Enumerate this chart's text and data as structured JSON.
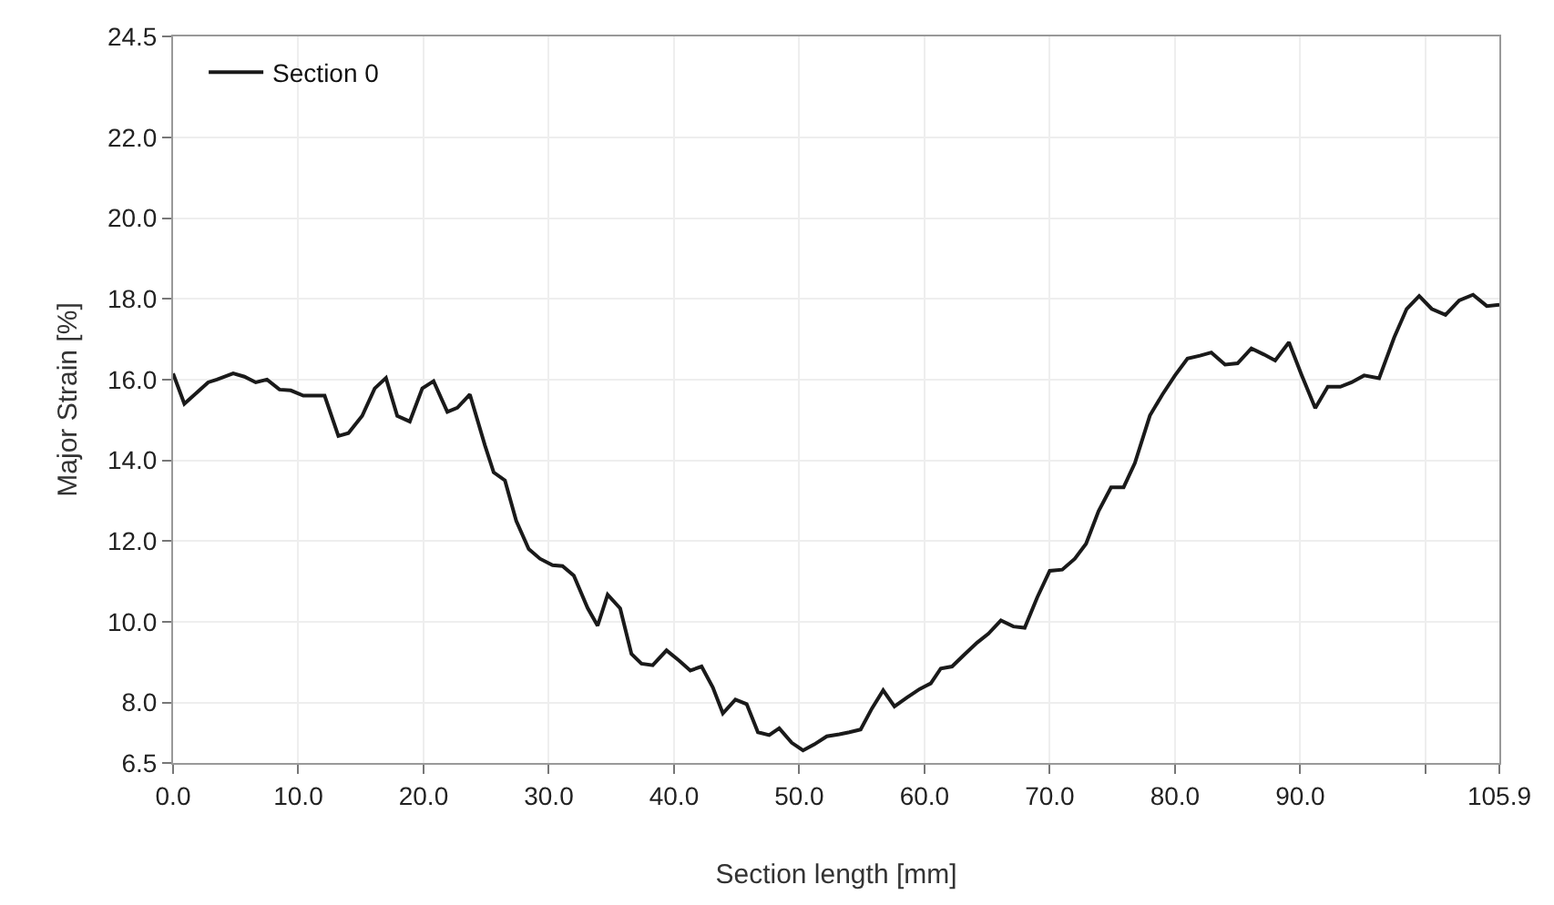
{
  "chart_data": {
    "type": "line",
    "xlabel": "Section length [mm]",
    "ylabel": "Major Strain [%]",
    "xlim": [
      0,
      105.9
    ],
    "ylim": [
      6.5,
      24.5
    ],
    "xticks": [
      {
        "value": 0,
        "label": "0.0"
      },
      {
        "value": 10,
        "label": "10.0"
      },
      {
        "value": 20,
        "label": "20.0"
      },
      {
        "value": 30,
        "label": "30.0"
      },
      {
        "value": 40,
        "label": "40.0"
      },
      {
        "value": 50,
        "label": "50.0"
      },
      {
        "value": 60,
        "label": "60.0"
      },
      {
        "value": 70,
        "label": "70.0"
      },
      {
        "value": 80,
        "label": "80.0"
      },
      {
        "value": 90,
        "label": "90.0"
      },
      {
        "value": 100,
        "label": null
      },
      {
        "value": 105.9,
        "label": "105.9"
      }
    ],
    "yticks": [
      {
        "value": 6.5,
        "label": "6.5"
      },
      {
        "value": 8,
        "label": "8.0"
      },
      {
        "value": 10,
        "label": "10.0"
      },
      {
        "value": 12,
        "label": "12.0"
      },
      {
        "value": 14,
        "label": "14.0"
      },
      {
        "value": 16,
        "label": "16.0"
      },
      {
        "value": 18,
        "label": "18.0"
      },
      {
        "value": 20,
        "label": "20.0"
      },
      {
        "value": 22,
        "label": "22.0"
      },
      {
        "value": 24.5,
        "label": "24.5"
      }
    ],
    "grid": true,
    "legend": "top left",
    "marker": "none",
    "line_style": "solid",
    "series": [
      {
        "name": "Section 0",
        "color": "#1a1a1a",
        "x": [
          0,
          0.9,
          2.8,
          3.5,
          4.8,
          5.7,
          6.6,
          7.5,
          8.5,
          9.4,
          10.4,
          12.1,
          13.2,
          14.0,
          15.1,
          16.1,
          17.0,
          17.9,
          18.9,
          19.9,
          20.8,
          21.9,
          22.7,
          23.7,
          24.9,
          25.6,
          26.5,
          27.4,
          28.4,
          29.3,
          30.3,
          31.1,
          32.0,
          33.1,
          33.9,
          34.7,
          35.7,
          36.6,
          37.4,
          38.3,
          39.4,
          40.4,
          41.3,
          42.2,
          43.1,
          43.9,
          44.9,
          45.8,
          46.7,
          47.6,
          48.4,
          49.4,
          50.3,
          51.2,
          52.2,
          53.2,
          54.0,
          54.9,
          55.8,
          56.7,
          57.6,
          58.6,
          59.6,
          60.5,
          61.3,
          62.2,
          63.2,
          64.2,
          65.1,
          66.1,
          67.1,
          68.0,
          69.0,
          70.0,
          71.0,
          72.0,
          72.9,
          73.9,
          74.9,
          75.9,
          76.8,
          78.0,
          79.0,
          80.0,
          81.0,
          82.0,
          82.9,
          84.0,
          85.0,
          86.1,
          87.1,
          88.0,
          89.1,
          90.1,
          91.2,
          92.2,
          93.2,
          94.1,
          95.1,
          96.3,
          97.5,
          98.5,
          99.5,
          100.5,
          101.6,
          102.7,
          103.8,
          104.9,
          105.9
        ],
        "values": [
          16.15,
          15.4,
          15.93,
          16.0,
          16.15,
          16.07,
          15.93,
          16.0,
          15.75,
          15.73,
          15.6,
          15.6,
          14.6,
          14.67,
          15.1,
          15.78,
          16.04,
          15.1,
          14.96,
          15.78,
          15.96,
          15.2,
          15.3,
          15.63,
          14.37,
          13.7,
          13.5,
          12.5,
          11.8,
          11.56,
          11.4,
          11.38,
          11.14,
          10.34,
          9.9,
          10.67,
          10.33,
          9.2,
          8.96,
          8.92,
          9.29,
          9.04,
          8.79,
          8.89,
          8.37,
          7.73,
          8.07,
          7.96,
          7.26,
          7.19,
          7.36,
          7.0,
          6.81,
          6.96,
          7.16,
          7.21,
          7.26,
          7.33,
          7.85,
          8.3,
          7.9,
          8.12,
          8.33,
          8.47,
          8.84,
          8.89,
          9.19,
          9.48,
          9.7,
          10.03,
          9.88,
          9.85,
          10.6,
          11.26,
          11.29,
          11.56,
          11.93,
          12.74,
          13.33,
          13.33,
          13.93,
          15.11,
          15.63,
          16.1,
          16.52,
          16.59,
          16.67,
          16.37,
          16.4,
          16.77,
          16.62,
          16.47,
          16.92,
          16.12,
          15.29,
          15.82,
          15.82,
          15.93,
          16.1,
          16.03,
          17.04,
          17.75,
          18.07,
          17.75,
          17.6,
          17.96,
          18.1,
          17.82,
          17.85
        ]
      }
    ]
  }
}
